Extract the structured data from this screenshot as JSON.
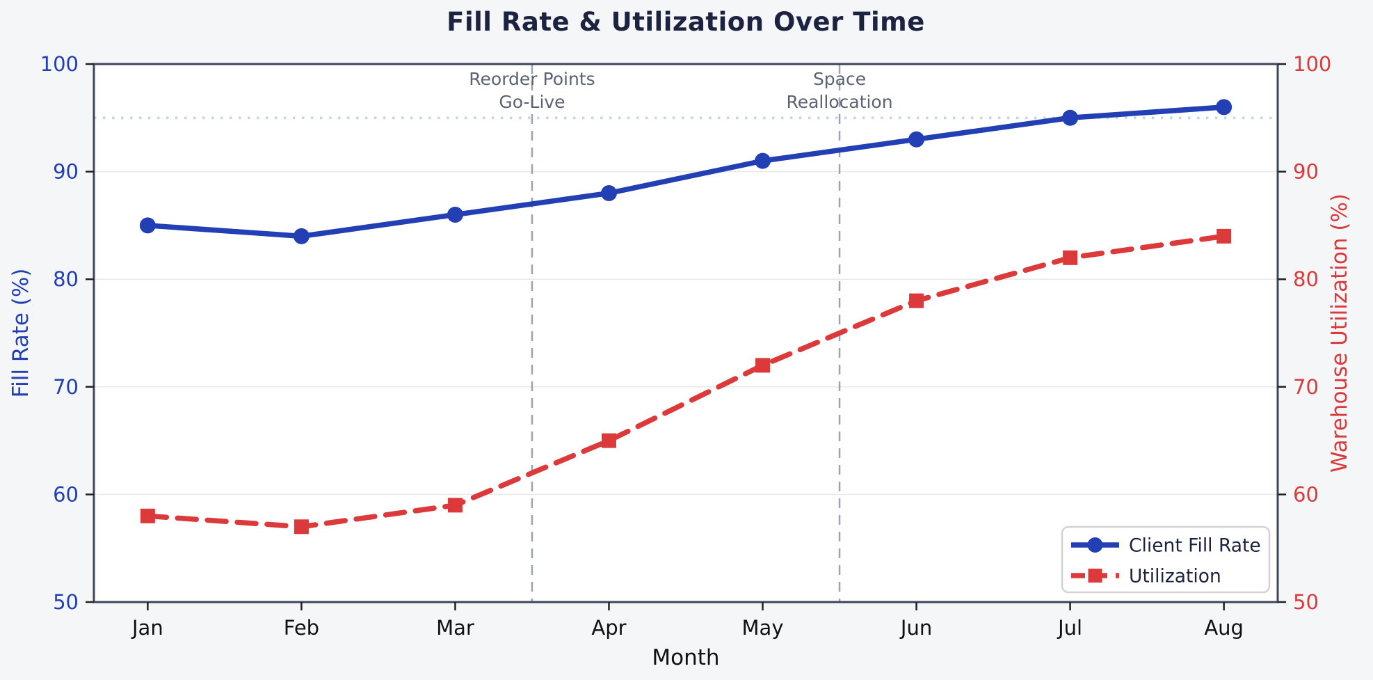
{
  "figure": {
    "bg_color": "#f5f6f8",
    "plot_bg_color": "#ffffff",
    "title_color": "#1c2340",
    "grid_color": "#e9e9e9",
    "spine_color": "#3d4559",
    "tick_text_color": "#111111",
    "vline_color": "#9aa3b0",
    "annotation_color": "#5a6372"
  },
  "chart_data": {
    "type": "line",
    "title": "Fill Rate & Utilization Over Time",
    "xlabel": "Month",
    "categories": [
      "Jan",
      "Feb",
      "Mar",
      "Apr",
      "May",
      "Jun",
      "Jul",
      "Aug"
    ],
    "axes": {
      "left": {
        "label": "Fill Rate (%)",
        "color": "#2240b4",
        "ylim": [
          50,
          100
        ],
        "ticks": [
          50,
          60,
          70,
          80,
          90,
          100
        ]
      },
      "right": {
        "label": "Warehouse Utilization (%)",
        "color": "#dc3a3a",
        "ylim": [
          50,
          100
        ],
        "ticks": [
          50,
          60,
          70,
          80,
          90,
          100
        ]
      }
    },
    "series": [
      {
        "name": "Client Fill Rate",
        "axis": "left",
        "values": [
          85,
          84,
          86,
          88,
          91,
          93,
          95,
          96
        ],
        "color": "#2240b4",
        "style": "solid",
        "marker": "circle"
      },
      {
        "name": "Utilization",
        "axis": "right",
        "values": [
          58,
          57,
          59,
          65,
          72,
          78,
          82,
          84
        ],
        "color": "#dc3a3a",
        "style": "dashed",
        "marker": "square"
      }
    ],
    "target_line": {
      "value": 95,
      "color": "#bdd7ee",
      "style": "dotted"
    },
    "vlines": [
      {
        "x_index": 2.5,
        "label_lines": [
          "Reorder Points",
          "Go-Live"
        ]
      },
      {
        "x_index": 4.5,
        "label_lines": [
          "Space",
          "Reallocation"
        ]
      }
    ],
    "legend": {
      "position": "lower right",
      "entries": [
        "Client Fill Rate",
        "Utilization"
      ]
    },
    "grid": "horizontal",
    "xlim_padding": 0.35
  }
}
